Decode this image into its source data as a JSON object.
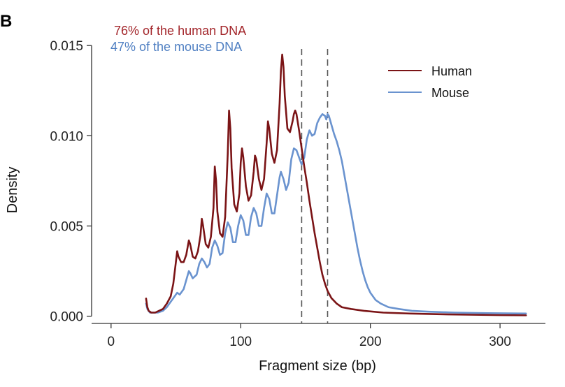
{
  "chart_data": {
    "type": "line",
    "panel_label": "B",
    "title": "",
    "xlabel": "Fragment size (bp)",
    "ylabel": "Density",
    "xlim": [
      -15,
      335
    ],
    "ylim": [
      -0.0004,
      0.0152
    ],
    "x_ticks": [
      0,
      100,
      200,
      300
    ],
    "x_tick_labels": [
      "0",
      "100",
      "200",
      "300"
    ],
    "y_ticks": [
      0.0,
      0.005,
      0.01,
      0.015
    ],
    "y_tick_labels": [
      "0.000",
      "0.005",
      "0.010",
      "0.015"
    ],
    "grid": false,
    "legend": {
      "placement": "top-right",
      "entries": [
        "Human",
        "Mouse"
      ]
    },
    "annotations": [
      {
        "text": "76% of the human DNA",
        "color": "#a3262b"
      },
      {
        "text": "47% of the mouse DNA",
        "color": "#4f7fc2"
      }
    ],
    "reference_lines": [
      {
        "x": 147,
        "style": "dashed"
      },
      {
        "x": 167,
        "style": "dashed"
      }
    ],
    "series": [
      {
        "name": "Human",
        "color": "#7b1416",
        "points": [
          [
            27,
            0.00098
          ],
          [
            28,
            0.0005
          ],
          [
            29,
            0.0003
          ],
          [
            31,
            0.0002
          ],
          [
            34,
            0.0002
          ],
          [
            37,
            0.0003
          ],
          [
            40,
            0.0004
          ],
          [
            43,
            0.0007
          ],
          [
            46,
            0.0011
          ],
          [
            48,
            0.0018
          ],
          [
            50,
            0.003
          ],
          [
            51,
            0.0036
          ],
          [
            52,
            0.0033
          ],
          [
            54,
            0.003
          ],
          [
            56,
            0.003
          ],
          [
            58,
            0.0034
          ],
          [
            60,
            0.0042
          ],
          [
            61,
            0.004
          ],
          [
            63,
            0.0033
          ],
          [
            65,
            0.0032
          ],
          [
            67,
            0.0036
          ],
          [
            69,
            0.0045
          ],
          [
            70,
            0.0054
          ],
          [
            71,
            0.005
          ],
          [
            73,
            0.004
          ],
          [
            75,
            0.0038
          ],
          [
            77,
            0.0044
          ],
          [
            79,
            0.006
          ],
          [
            80,
            0.0083
          ],
          [
            81,
            0.0075
          ],
          [
            82,
            0.0058
          ],
          [
            84,
            0.0046
          ],
          [
            86,
            0.0044
          ],
          [
            88,
            0.0055
          ],
          [
            90,
            0.009
          ],
          [
            91,
            0.0114
          ],
          [
            92,
            0.0104
          ],
          [
            93,
            0.0082
          ],
          [
            95,
            0.0062
          ],
          [
            97,
            0.0058
          ],
          [
            99,
            0.0068
          ],
          [
            100,
            0.0085
          ],
          [
            101,
            0.0093
          ],
          [
            102,
            0.0088
          ],
          [
            104,
            0.0072
          ],
          [
            106,
            0.0064
          ],
          [
            108,
            0.0067
          ],
          [
            110,
            0.008
          ],
          [
            111,
            0.0089
          ],
          [
            112,
            0.0087
          ],
          [
            114,
            0.0076
          ],
          [
            116,
            0.007
          ],
          [
            118,
            0.0076
          ],
          [
            120,
            0.0096
          ],
          [
            121,
            0.0108
          ],
          [
            122,
            0.0104
          ],
          [
            124,
            0.009
          ],
          [
            126,
            0.0085
          ],
          [
            128,
            0.0092
          ],
          [
            130,
            0.0118
          ],
          [
            131,
            0.0136
          ],
          [
            132,
            0.0145
          ],
          [
            133,
            0.0138
          ],
          [
            134,
            0.0122
          ],
          [
            136,
            0.0104
          ],
          [
            138,
            0.0102
          ],
          [
            140,
            0.0108
          ],
          [
            141,
            0.0112
          ],
          [
            142,
            0.0114
          ],
          [
            143,
            0.0112
          ],
          [
            145,
            0.0103
          ],
          [
            147,
            0.0093
          ],
          [
            149,
            0.0083
          ],
          [
            151,
            0.0074
          ],
          [
            153,
            0.0064
          ],
          [
            155,
            0.0055
          ],
          [
            157,
            0.0046
          ],
          [
            159,
            0.0038
          ],
          [
            161,
            0.003
          ],
          [
            163,
            0.0023
          ],
          [
            165,
            0.0018
          ],
          [
            167,
            0.0014
          ],
          [
            170,
            0.001
          ],
          [
            174,
            0.0007
          ],
          [
            178,
            0.0005
          ],
          [
            185,
            0.0004
          ],
          [
            195,
            0.0003
          ],
          [
            210,
            0.0002
          ],
          [
            230,
            0.00015
          ],
          [
            260,
            0.0001
          ],
          [
            300,
            6e-05
          ],
          [
            320,
            5e-05
          ]
        ]
      },
      {
        "name": "Mouse",
        "color": "#6a93cf",
        "points": [
          [
            27,
            0.0007
          ],
          [
            28,
            0.0004
          ],
          [
            30,
            0.0002
          ],
          [
            33,
            0.0002
          ],
          [
            36,
            0.0002
          ],
          [
            40,
            0.0003
          ],
          [
            43,
            0.0005
          ],
          [
            46,
            0.0008
          ],
          [
            48,
            0.001
          ],
          [
            50,
            0.0012
          ],
          [
            51,
            0.0013
          ],
          [
            53,
            0.0012
          ],
          [
            56,
            0.0015
          ],
          [
            58,
            0.002
          ],
          [
            60,
            0.0025
          ],
          [
            61,
            0.0024
          ],
          [
            63,
            0.0021
          ],
          [
            66,
            0.0023
          ],
          [
            68,
            0.0029
          ],
          [
            70,
            0.0032
          ],
          [
            72,
            0.003
          ],
          [
            74,
            0.0027
          ],
          [
            76,
            0.0029
          ],
          [
            78,
            0.0038
          ],
          [
            80,
            0.0042
          ],
          [
            82,
            0.0039
          ],
          [
            84,
            0.0034
          ],
          [
            86,
            0.0035
          ],
          [
            88,
            0.0046
          ],
          [
            90,
            0.0052
          ],
          [
            92,
            0.0049
          ],
          [
            94,
            0.0041
          ],
          [
            96,
            0.0041
          ],
          [
            98,
            0.005
          ],
          [
            100,
            0.0056
          ],
          [
            102,
            0.0053
          ],
          [
            104,
            0.0045
          ],
          [
            106,
            0.0045
          ],
          [
            108,
            0.0055
          ],
          [
            110,
            0.006
          ],
          [
            112,
            0.0057
          ],
          [
            114,
            0.005
          ],
          [
            116,
            0.005
          ],
          [
            118,
            0.006
          ],
          [
            120,
            0.0068
          ],
          [
            122,
            0.0065
          ],
          [
            124,
            0.0057
          ],
          [
            126,
            0.0057
          ],
          [
            128,
            0.0067
          ],
          [
            130,
            0.0077
          ],
          [
            131,
            0.008
          ],
          [
            133,
            0.0076
          ],
          [
            135,
            0.007
          ],
          [
            137,
            0.0074
          ],
          [
            139,
            0.0087
          ],
          [
            141,
            0.0093
          ],
          [
            143,
            0.0092
          ],
          [
            145,
            0.0088
          ],
          [
            147,
            0.0084
          ],
          [
            149,
            0.0088
          ],
          [
            151,
            0.0098
          ],
          [
            153,
            0.0103
          ],
          [
            155,
            0.01
          ],
          [
            157,
            0.0101
          ],
          [
            159,
            0.0107
          ],
          [
            161,
            0.011
          ],
          [
            163,
            0.0112
          ],
          [
            165,
            0.0111
          ],
          [
            166,
            0.0109
          ],
          [
            167,
            0.0112
          ],
          [
            168,
            0.0111
          ],
          [
            170,
            0.0106
          ],
          [
            172,
            0.0101
          ],
          [
            174,
            0.0097
          ],
          [
            176,
            0.0092
          ],
          [
            178,
            0.0086
          ],
          [
            180,
            0.0078
          ],
          [
            182,
            0.007
          ],
          [
            184,
            0.0062
          ],
          [
            186,
            0.0054
          ],
          [
            188,
            0.0046
          ],
          [
            190,
            0.0038
          ],
          [
            192,
            0.0031
          ],
          [
            194,
            0.0025
          ],
          [
            196,
            0.002
          ],
          [
            198,
            0.0016
          ],
          [
            200,
            0.0013
          ],
          [
            204,
            0.0009
          ],
          [
            208,
            0.0007
          ],
          [
            214,
            0.0005
          ],
          [
            222,
            0.0004
          ],
          [
            232,
            0.0003
          ],
          [
            245,
            0.00025
          ],
          [
            265,
            0.0002
          ],
          [
            290,
            0.00017
          ],
          [
            320,
            0.00015
          ]
        ]
      }
    ]
  }
}
